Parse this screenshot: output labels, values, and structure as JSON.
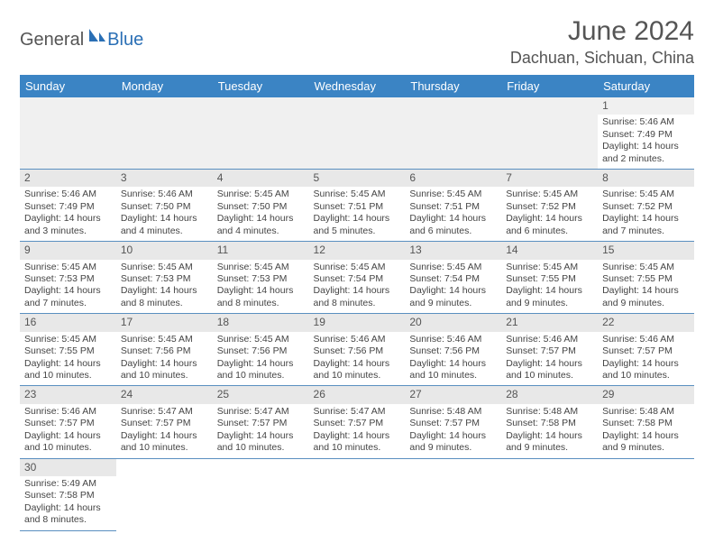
{
  "brand": {
    "part1": "General",
    "part2": "Blue"
  },
  "title": "June 2024",
  "location": "Dachuan, Sichuan, China",
  "colors": {
    "header_bg": "#3b84c4",
    "row_divider": "#5a8fc0",
    "daynum_bg": "#e8e8e8",
    "brand_blue": "#2a6fb5",
    "text": "#444444"
  },
  "day_headers": [
    "Sunday",
    "Monday",
    "Tuesday",
    "Wednesday",
    "Thursday",
    "Friday",
    "Saturday"
  ],
  "weeks": [
    [
      null,
      null,
      null,
      null,
      null,
      null,
      {
        "n": "1",
        "sr": "5:46 AM",
        "ss": "7:49 PM",
        "dl": "14 hours and 2 minutes."
      }
    ],
    [
      {
        "n": "2",
        "sr": "5:46 AM",
        "ss": "7:49 PM",
        "dl": "14 hours and 3 minutes."
      },
      {
        "n": "3",
        "sr": "5:46 AM",
        "ss": "7:50 PM",
        "dl": "14 hours and 4 minutes."
      },
      {
        "n": "4",
        "sr": "5:45 AM",
        "ss": "7:50 PM",
        "dl": "14 hours and 4 minutes."
      },
      {
        "n": "5",
        "sr": "5:45 AM",
        "ss": "7:51 PM",
        "dl": "14 hours and 5 minutes."
      },
      {
        "n": "6",
        "sr": "5:45 AM",
        "ss": "7:51 PM",
        "dl": "14 hours and 6 minutes."
      },
      {
        "n": "7",
        "sr": "5:45 AM",
        "ss": "7:52 PM",
        "dl": "14 hours and 6 minutes."
      },
      {
        "n": "8",
        "sr": "5:45 AM",
        "ss": "7:52 PM",
        "dl": "14 hours and 7 minutes."
      }
    ],
    [
      {
        "n": "9",
        "sr": "5:45 AM",
        "ss": "7:53 PM",
        "dl": "14 hours and 7 minutes."
      },
      {
        "n": "10",
        "sr": "5:45 AM",
        "ss": "7:53 PM",
        "dl": "14 hours and 8 minutes."
      },
      {
        "n": "11",
        "sr": "5:45 AM",
        "ss": "7:53 PM",
        "dl": "14 hours and 8 minutes."
      },
      {
        "n": "12",
        "sr": "5:45 AM",
        "ss": "7:54 PM",
        "dl": "14 hours and 8 minutes."
      },
      {
        "n": "13",
        "sr": "5:45 AM",
        "ss": "7:54 PM",
        "dl": "14 hours and 9 minutes."
      },
      {
        "n": "14",
        "sr": "5:45 AM",
        "ss": "7:55 PM",
        "dl": "14 hours and 9 minutes."
      },
      {
        "n": "15",
        "sr": "5:45 AM",
        "ss": "7:55 PM",
        "dl": "14 hours and 9 minutes."
      }
    ],
    [
      {
        "n": "16",
        "sr": "5:45 AM",
        "ss": "7:55 PM",
        "dl": "14 hours and 10 minutes."
      },
      {
        "n": "17",
        "sr": "5:45 AM",
        "ss": "7:56 PM",
        "dl": "14 hours and 10 minutes."
      },
      {
        "n": "18",
        "sr": "5:45 AM",
        "ss": "7:56 PM",
        "dl": "14 hours and 10 minutes."
      },
      {
        "n": "19",
        "sr": "5:46 AM",
        "ss": "7:56 PM",
        "dl": "14 hours and 10 minutes."
      },
      {
        "n": "20",
        "sr": "5:46 AM",
        "ss": "7:56 PM",
        "dl": "14 hours and 10 minutes."
      },
      {
        "n": "21",
        "sr": "5:46 AM",
        "ss": "7:57 PM",
        "dl": "14 hours and 10 minutes."
      },
      {
        "n": "22",
        "sr": "5:46 AM",
        "ss": "7:57 PM",
        "dl": "14 hours and 10 minutes."
      }
    ],
    [
      {
        "n": "23",
        "sr": "5:46 AM",
        "ss": "7:57 PM",
        "dl": "14 hours and 10 minutes."
      },
      {
        "n": "24",
        "sr": "5:47 AM",
        "ss": "7:57 PM",
        "dl": "14 hours and 10 minutes."
      },
      {
        "n": "25",
        "sr": "5:47 AM",
        "ss": "7:57 PM",
        "dl": "14 hours and 10 minutes."
      },
      {
        "n": "26",
        "sr": "5:47 AM",
        "ss": "7:57 PM",
        "dl": "14 hours and 10 minutes."
      },
      {
        "n": "27",
        "sr": "5:48 AM",
        "ss": "7:57 PM",
        "dl": "14 hours and 9 minutes."
      },
      {
        "n": "28",
        "sr": "5:48 AM",
        "ss": "7:58 PM",
        "dl": "14 hours and 9 minutes."
      },
      {
        "n": "29",
        "sr": "5:48 AM",
        "ss": "7:58 PM",
        "dl": "14 hours and 9 minutes."
      }
    ],
    [
      {
        "n": "30",
        "sr": "5:49 AM",
        "ss": "7:58 PM",
        "dl": "14 hours and 8 minutes."
      },
      null,
      null,
      null,
      null,
      null,
      null
    ]
  ],
  "labels": {
    "sunrise": "Sunrise:",
    "sunset": "Sunset:",
    "daylight": "Daylight:"
  }
}
